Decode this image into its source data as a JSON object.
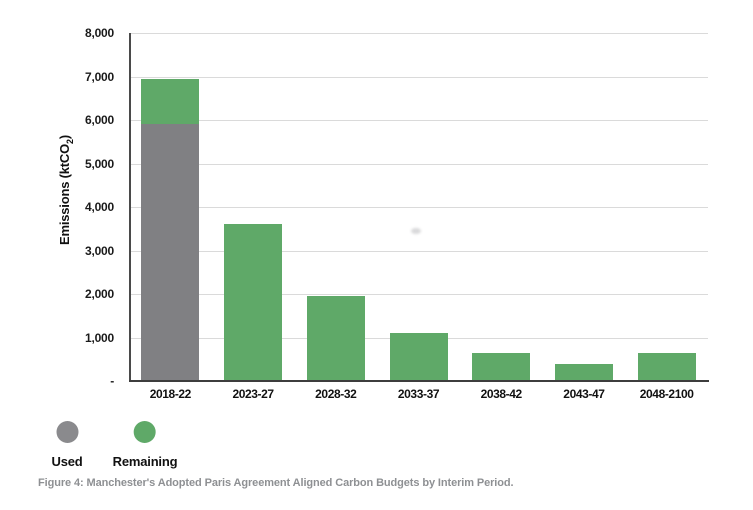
{
  "figure": {
    "caption": "Figure 4: Manchester's Adopted Paris Agreement Aligned Carbon Budgets by Interim Period."
  },
  "chart_data": {
    "type": "bar",
    "stacked": true,
    "title": "",
    "xlabel": "",
    "ylabel": "Emissions (ktCO2)",
    "ylabel_parts": {
      "main": "Emissions (ktCO",
      "sub": "2",
      "end": ")"
    },
    "categories": [
      "2018-22",
      "2023-27",
      "2028-32",
      "2033-37",
      "2038-42",
      "2043-47",
      "2048-2100"
    ],
    "series": [
      {
        "name": "Used",
        "color": "#808083",
        "values": [
          5900,
          0,
          0,
          0,
          0,
          0,
          0
        ]
      },
      {
        "name": "Remaining",
        "color": "#5FA968",
        "values": [
          1050,
          3600,
          1950,
          1100,
          650,
          400,
          640
        ]
      }
    ],
    "ylim": [
      0,
      8000
    ],
    "ytick_step": 1000,
    "ytick_labels": [
      "8,000",
      "7,000",
      "6,000",
      "5,000",
      "4,000",
      "3,000",
      "2,000",
      "1,000",
      "-"
    ],
    "grid": "horizontal",
    "legend_position": "below-left"
  },
  "legend": {
    "items": [
      {
        "label": "Used",
        "color": "#8A8A8D"
      },
      {
        "label": "Remaining",
        "color": "#5FA968"
      }
    ]
  },
  "colors": {
    "gridline": "#DADADA",
    "axis": "#3F3F3F",
    "tick_text": "#1A1A1A",
    "caption_text": "#8E9093",
    "background": "#FFFFFF"
  }
}
